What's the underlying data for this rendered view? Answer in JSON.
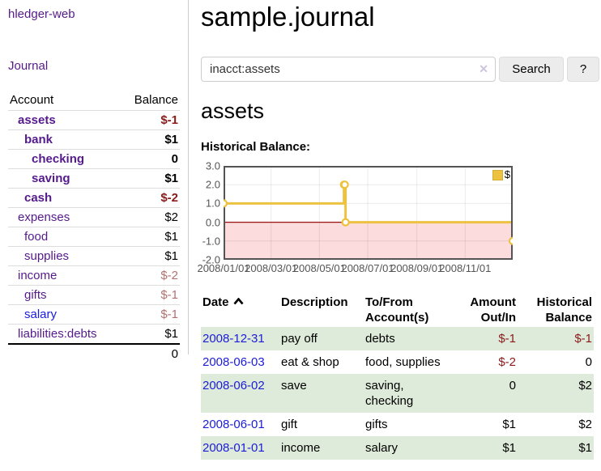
{
  "sidebar": {
    "brand": "hledger-web",
    "nav": [
      {
        "label": "Journal"
      }
    ],
    "accounts_table": {
      "headers": {
        "account": "Account",
        "balance": "Balance"
      },
      "rows": [
        {
          "name": "assets",
          "balance": "$-1",
          "indent": 1,
          "bold": true
        },
        {
          "name": "bank",
          "balance": "$1",
          "indent": 2,
          "bold": true
        },
        {
          "name": "checking",
          "balance": "0",
          "indent": 3,
          "bold": true
        },
        {
          "name": "saving",
          "balance": "$1",
          "indent": 3,
          "bold": true
        },
        {
          "name": "cash",
          "balance": "$-2",
          "indent": 2,
          "bold": true
        },
        {
          "name": "expenses",
          "balance": "$2",
          "indent": 1,
          "bold": false
        },
        {
          "name": "food",
          "balance": "$1",
          "indent": 2,
          "bold": false
        },
        {
          "name": "supplies",
          "balance": "$1",
          "indent": 2,
          "bold": false
        },
        {
          "name": "income",
          "balance": "$-2",
          "indent": 1,
          "bold": false
        },
        {
          "name": "gifts",
          "balance": "$-1",
          "indent": 2,
          "bold": false
        },
        {
          "name": "salary",
          "balance": "$-1",
          "indent": 2,
          "bold": false,
          "blue": true
        },
        {
          "name": "liabilities:debts",
          "balance": "$1",
          "indent": 1,
          "bold": false
        }
      ],
      "total": "0"
    }
  },
  "header": {
    "title": "sample.journal",
    "search": {
      "value": "inacct:assets",
      "clear_icon": "✕",
      "button": "Search",
      "help": "?"
    }
  },
  "main": {
    "account_heading": "assets"
  },
  "chart_data": {
    "type": "line",
    "step": true,
    "title": "Historical Balance:",
    "series": [
      {
        "name": "$",
        "color": "#edc240",
        "points": [
          [
            "2008-01-01",
            1
          ],
          [
            "2008-06-01",
            2
          ],
          [
            "2008-06-02",
            2
          ],
          [
            "2008-06-03",
            0
          ],
          [
            "2008-12-31",
            -1
          ]
        ]
      }
    ],
    "x_range": [
      "2008-01-01",
      "2008-12-31"
    ],
    "x_ticks": [
      "2008/01/01",
      "2008/03/01",
      "2008/05/01",
      "2008/07/01",
      "2008/09/01",
      "2008/11/01"
    ],
    "y_ticks": [
      "3.0",
      "2.0",
      "1.0",
      "0.0",
      "-1.0",
      "-2.0"
    ],
    "ylim": [
      -2,
      3
    ],
    "grid": true,
    "grid_color": "rgba(0,0,0,0.08)",
    "border_color": "#545454",
    "negative_fill": "#fcdcdc",
    "zero_line_color": "#991111",
    "legend": {
      "label": "$",
      "position": "top-right"
    }
  },
  "register_table": {
    "headers": {
      "date": "Date",
      "description": "Description",
      "accounts": "To/From Account(s)",
      "amount": "Amount Out/In",
      "balance": "Historical Balance"
    },
    "sort": {
      "column": "date",
      "direction": "ascending"
    },
    "rows": [
      {
        "date": "2008-12-31",
        "description": "pay off",
        "accounts": "debts",
        "amount": "$-1",
        "balance": "$-1",
        "shaded": true
      },
      {
        "date": "2008-06-03",
        "description": "eat & shop",
        "accounts": "food, supplies",
        "amount": "$-2",
        "balance": "0",
        "shaded": false
      },
      {
        "date": "2008-06-02",
        "description": "save",
        "accounts": "saving, checking",
        "amount": "0",
        "balance": "$2",
        "shaded": true
      },
      {
        "date": "2008-06-01",
        "description": "gift",
        "accounts": "gifts",
        "amount": "$1",
        "balance": "$2",
        "shaded": false
      },
      {
        "date": "2008-01-01",
        "description": "income",
        "accounts": "salary",
        "amount": "$1",
        "balance": "$1",
        "shaded": true
      }
    ]
  }
}
